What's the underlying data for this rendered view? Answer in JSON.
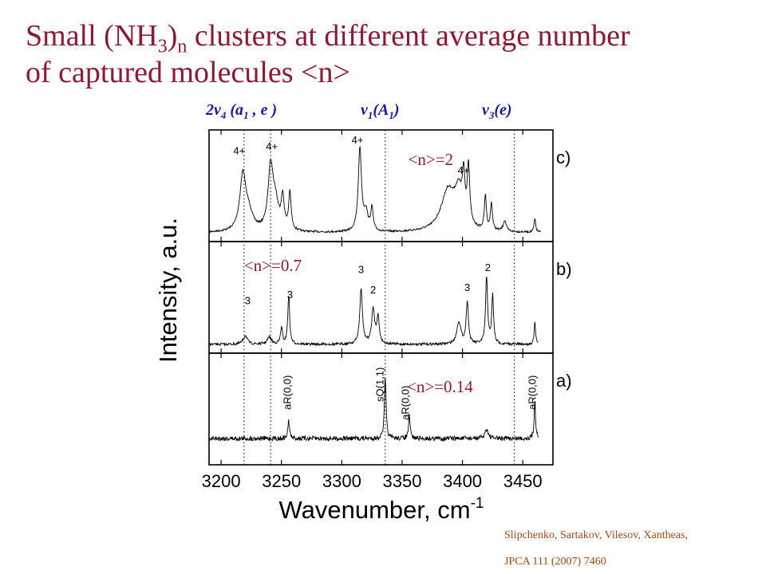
{
  "title": {
    "line1_a": "Small (NH",
    "sub_3": "3",
    "line1_b": ")",
    "sub_n": "n",
    "line1_c": " clusters at different average number",
    "line2": "of captured molecules <n>"
  },
  "modes": [
    {
      "prefix": "2v",
      "sub1": "4",
      "mid": " (a",
      "sub2": "1",
      "suffix": " ,  e )"
    },
    {
      "prefix": "v",
      "sub1": "1",
      "mid": "(A",
      "sub2": "1",
      "suffix": ")"
    },
    {
      "prefix": "v",
      "sub1": "3",
      "mid": "(e)",
      "sub2": "",
      "suffix": ""
    }
  ],
  "citation": {
    "line1": "Slipchenko, Sartakov, Vilesov, Xantheas,",
    "line2": "JPCA 111 (2007) 7460"
  },
  "chart_data": {
    "type": "line",
    "xlabel": "Wavenumber, cm",
    "xlabel_sup": "-1",
    "ylabel": "Intensity, a.u.",
    "xlim": [
      3190,
      3475
    ],
    "xticks": [
      3200,
      3250,
      3300,
      3350,
      3400,
      3450
    ],
    "dotted_lines_x": [
      3219,
      3241,
      3336,
      3443
    ],
    "panels": [
      {
        "id": "c",
        "label": "c)",
        "note": "<n>=2",
        "peaks": [
          {
            "x": 3218,
            "h": 0.62,
            "w": 3.0
          },
          {
            "x": 3223,
            "h": 0.18,
            "w": 4
          },
          {
            "x": 3241,
            "h": 0.7,
            "w": 2.5
          },
          {
            "x": 3245,
            "h": 0.28,
            "w": 3
          },
          {
            "x": 3251,
            "h": 0.35,
            "w": 1.5
          },
          {
            "x": 3257,
            "h": 0.42,
            "w": 1.2
          },
          {
            "x": 3315,
            "h": 0.93,
            "w": 1.6
          },
          {
            "x": 3320,
            "h": 0.2,
            "w": 2
          },
          {
            "x": 3325,
            "h": 0.25,
            "w": 1.2
          },
          {
            "x": 3388,
            "h": 0.45,
            "w": 7
          },
          {
            "x": 3397,
            "h": 0.38,
            "w": 4
          },
          {
            "x": 3401,
            "h": 0.45,
            "w": 1.2
          },
          {
            "x": 3405,
            "h": 0.65,
            "w": 1.2
          },
          {
            "x": 3419,
            "h": 0.38,
            "w": 1.0
          },
          {
            "x": 3424,
            "h": 0.3,
            "w": 1.0
          },
          {
            "x": 3435,
            "h": 0.12,
            "w": 1.5
          },
          {
            "x": 3460,
            "h": 0.15,
            "w": 0.8
          }
        ],
        "annotations": [
          {
            "text": "4+",
            "x": 3215,
            "h": 0.88
          },
          {
            "text": "4+",
            "x": 3242,
            "h": 0.93
          },
          {
            "text": "4+",
            "x": 3313,
            "h": 1.0
          },
          {
            "text": "4+",
            "x": 3401,
            "h": 0.66
          }
        ]
      },
      {
        "id": "b",
        "label": "b)",
        "note": "<n>=0.7",
        "peaks": [
          {
            "x": 3220,
            "h": 0.1,
            "w": 2
          },
          {
            "x": 3240,
            "h": 0.08,
            "w": 2
          },
          {
            "x": 3250,
            "h": 0.18,
            "w": 1.0
          },
          {
            "x": 3256,
            "h": 0.55,
            "w": 0.9
          },
          {
            "x": 3316,
            "h": 0.62,
            "w": 1.3
          },
          {
            "x": 3326,
            "h": 0.38,
            "w": 1.5
          },
          {
            "x": 3330,
            "h": 0.3,
            "w": 1.2
          },
          {
            "x": 3397,
            "h": 0.25,
            "w": 2
          },
          {
            "x": 3404,
            "h": 0.48,
            "w": 1.1
          },
          {
            "x": 3420,
            "h": 0.75,
            "w": 1.0
          },
          {
            "x": 3425,
            "h": 0.55,
            "w": 0.9
          },
          {
            "x": 3460,
            "h": 0.25,
            "w": 0.7
          }
        ],
        "annotations": [
          {
            "text": "3",
            "x": 3222,
            "h": 0.45
          },
          {
            "text": "3",
            "x": 3257,
            "h": 0.52
          },
          {
            "text": "3",
            "x": 3316,
            "h": 0.8
          },
          {
            "text": "2",
            "x": 3326,
            "h": 0.57
          },
          {
            "text": "3",
            "x": 3404,
            "h": 0.6
          },
          {
            "text": "2",
            "x": 3421,
            "h": 0.82
          }
        ]
      },
      {
        "id": "a",
        "label": "a)",
        "note": "<n>=0.14",
        "peaks": [
          {
            "x": 3256,
            "h": 0.22,
            "w": 0.8
          },
          {
            "x": 3336,
            "h": 0.78,
            "w": 0.8
          },
          {
            "x": 3356,
            "h": 0.28,
            "w": 0.8
          },
          {
            "x": 3420,
            "h": 0.12,
            "w": 1.5
          },
          {
            "x": 3460,
            "h": 0.48,
            "w": 0.7
          }
        ],
        "annotations": [
          {
            "text": "aR(0,0)",
            "x": 3255,
            "h": 0.98
          },
          {
            "text": "sQ(1,1)",
            "x": 3332,
            "h": 1.08
          },
          {
            "text": "aR(0,0)",
            "x": 3353,
            "h": 0.85
          },
          {
            "text": "aR(0,0)",
            "x": 3458,
            "h": 0.98
          }
        ]
      }
    ]
  }
}
